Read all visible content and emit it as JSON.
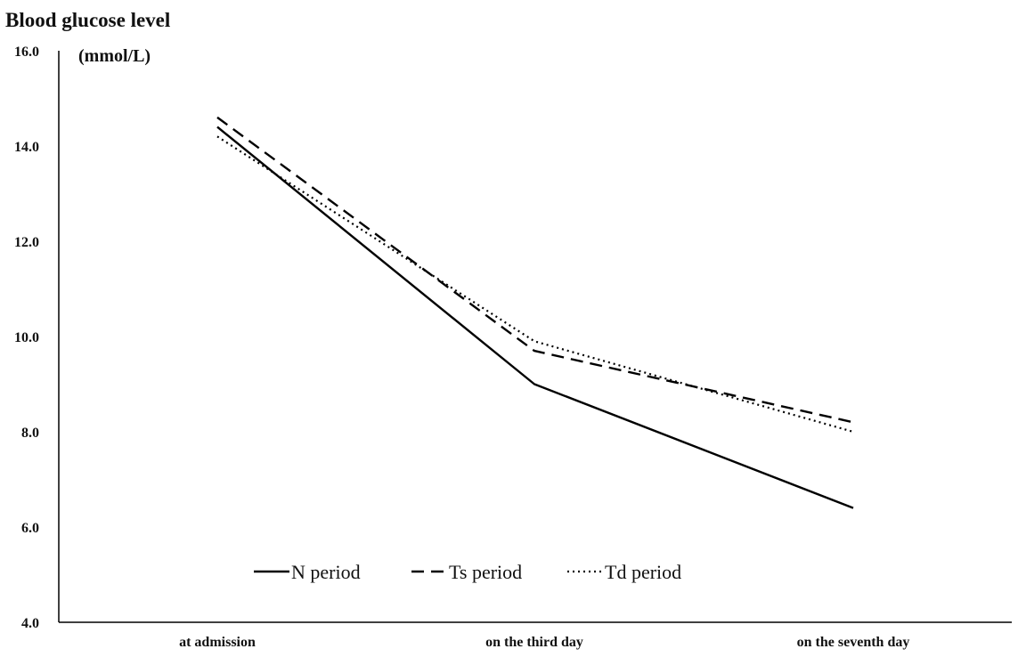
{
  "chart_data": {
    "type": "line",
    "title": "Blood glucose level",
    "unit": "(mmol/L)",
    "categories": [
      "at admission",
      "on the third day",
      "on the seventh day"
    ],
    "ylim": [
      4.0,
      16.0
    ],
    "yticks": [
      "4.0",
      "6.0",
      "8.0",
      "10.0",
      "12.0",
      "14.0",
      "16.0"
    ],
    "grid": false,
    "legend_position": "bottom-center",
    "series": [
      {
        "name": "N period",
        "style": "solid",
        "color": "#000000",
        "values": [
          14.4,
          9.0,
          6.4
        ]
      },
      {
        "name": "Ts period",
        "style": "dashed",
        "color": "#000000",
        "values": [
          14.6,
          9.7,
          8.2
        ]
      },
      {
        "name": "Td period",
        "style": "dotted",
        "color": "#000000",
        "values": [
          14.2,
          9.9,
          8.0
        ]
      }
    ]
  }
}
